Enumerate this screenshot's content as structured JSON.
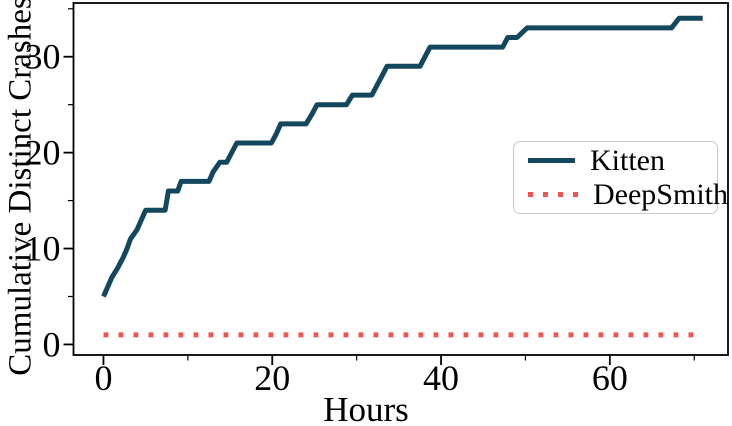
{
  "figure": {
    "title": "",
    "background_color": "#ffffff",
    "text_color": "#000000"
  },
  "chart_data": {
    "type": "line",
    "title": "",
    "xlabel": "Hours",
    "ylabel": "Cumulative Distinct Crashes",
    "xlim": [
      -3.55,
      74.0
    ],
    "ylim": [
      -1.1,
      35.6
    ],
    "x_major_ticks": [
      0,
      20,
      40,
      60
    ],
    "x_minor_ticks": [
      10,
      30,
      50,
      70
    ],
    "y_major_ticks": [
      0,
      10,
      20,
      30
    ],
    "y_minor_ticks": [
      5,
      15,
      25,
      35
    ],
    "grid": false,
    "legend_position": "lower-right-inside",
    "series": [
      {
        "name": "Kitten",
        "color": "#13475d",
        "style": "solid",
        "linewidth": 5,
        "points": [
          [
            0,
            5
          ],
          [
            1,
            7
          ],
          [
            1.7,
            8
          ],
          [
            2.3,
            9
          ],
          [
            2.8,
            10
          ],
          [
            3.2,
            11
          ],
          [
            4,
            12
          ],
          [
            4.5,
            13
          ],
          [
            5,
            14
          ],
          [
            7.3,
            14
          ],
          [
            7.5,
            15
          ],
          [
            7.7,
            16
          ],
          [
            8.8,
            16
          ],
          [
            9.2,
            17
          ],
          [
            12.5,
            17
          ],
          [
            13,
            18
          ],
          [
            13.8,
            19
          ],
          [
            14.6,
            19
          ],
          [
            15.2,
            20
          ],
          [
            15.8,
            21
          ],
          [
            19.9,
            21
          ],
          [
            20.5,
            22
          ],
          [
            21,
            23
          ],
          [
            24,
            23
          ],
          [
            24.7,
            24
          ],
          [
            25.3,
            25
          ],
          [
            28.8,
            25
          ],
          [
            29.5,
            26
          ],
          [
            31.8,
            26
          ],
          [
            32.4,
            27
          ],
          [
            33,
            28
          ],
          [
            33.6,
            29
          ],
          [
            37.5,
            29
          ],
          [
            38.1,
            30
          ],
          [
            38.7,
            31
          ],
          [
            47.3,
            31
          ],
          [
            47.9,
            32
          ],
          [
            49,
            32
          ],
          [
            50.2,
            33
          ],
          [
            67.3,
            33
          ],
          [
            68.2,
            34
          ],
          [
            71,
            34
          ]
        ]
      },
      {
        "name": "DeepSmith",
        "color": "#f0544f",
        "style": "dotted",
        "linewidth": 5,
        "points": [
          [
            0,
            1
          ],
          [
            71,
            1
          ]
        ]
      }
    ]
  }
}
